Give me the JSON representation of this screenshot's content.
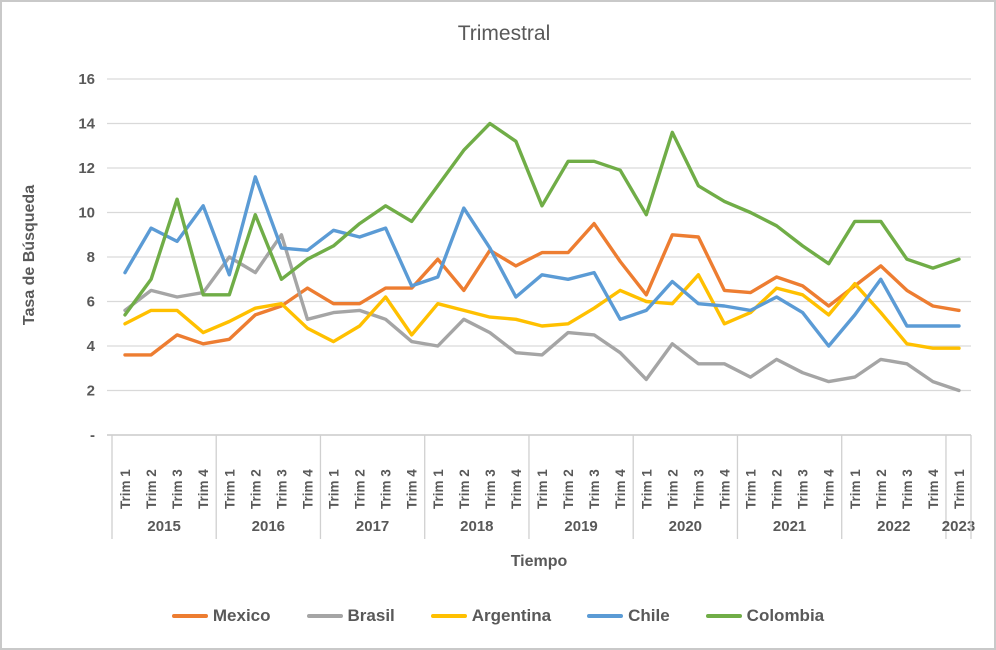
{
  "chart_data": {
    "type": "line",
    "title": "Trimestral",
    "xlabel": "Tiempo",
    "ylabel": "Tasa de Búsqueda",
    "ylim": [
      0,
      16
    ],
    "ytick_step": 2,
    "ytick_zero_label": "-",
    "grid": true,
    "legend_position": "bottom",
    "years": [
      {
        "label": "2015",
        "quarters": [
          "Trim 1",
          "Trim 2",
          "Trim 3",
          "Trim 4"
        ]
      },
      {
        "label": "2016",
        "quarters": [
          "Trim 1",
          "Trim 2",
          "Trim 3",
          "Trim 4"
        ]
      },
      {
        "label": "2017",
        "quarters": [
          "Trim 1",
          "Trim 2",
          "Trim 3",
          "Trim 4"
        ]
      },
      {
        "label": "2018",
        "quarters": [
          "Trim 1",
          "Trim 2",
          "Trim 3",
          "Trim 4"
        ]
      },
      {
        "label": "2019",
        "quarters": [
          "Trim 1",
          "Trim 2",
          "Trim 3",
          "Trim 4"
        ]
      },
      {
        "label": "2020",
        "quarters": [
          "Trim 1",
          "Trim 2",
          "Trim 3",
          "Trim 4"
        ]
      },
      {
        "label": "2021",
        "quarters": [
          "Trim 1",
          "Trim 2",
          "Trim 3",
          "Trim 4"
        ]
      },
      {
        "label": "2022",
        "quarters": [
          "Trim 1",
          "Trim 2",
          "Trim 3",
          "Trim 4"
        ]
      },
      {
        "label": "2023",
        "quarters": [
          "Trim 1"
        ]
      }
    ],
    "series": [
      {
        "name": "Mexico",
        "color": "#ED7D31",
        "values": [
          3.6,
          3.6,
          4.5,
          4.1,
          4.3,
          5.4,
          5.8,
          6.6,
          5.9,
          5.9,
          6.6,
          6.6,
          7.9,
          6.5,
          8.3,
          7.6,
          8.2,
          8.2,
          9.5,
          7.8,
          6.3,
          9.0,
          8.9,
          6.5,
          6.4,
          7.1,
          6.7,
          5.8,
          6.7,
          7.6,
          6.5,
          5.8,
          5.6
        ]
      },
      {
        "name": "Brasil",
        "color": "#A5A5A5",
        "values": [
          5.6,
          6.5,
          6.2,
          6.4,
          8.0,
          7.3,
          9.0,
          5.2,
          5.5,
          5.6,
          5.2,
          4.2,
          4.0,
          5.2,
          4.6,
          3.7,
          3.6,
          4.6,
          4.5,
          3.7,
          2.5,
          4.1,
          3.2,
          3.2,
          2.6,
          3.4,
          2.8,
          2.4,
          2.6,
          3.4,
          3.2,
          2.4,
          2.0
        ]
      },
      {
        "name": "Argentina",
        "color": "#FFC000",
        "values": [
          5.0,
          5.6,
          5.6,
          4.6,
          5.1,
          5.7,
          5.9,
          4.8,
          4.2,
          4.9,
          6.2,
          4.5,
          5.9,
          5.6,
          5.3,
          5.2,
          4.9,
          5.0,
          5.7,
          6.5,
          6.0,
          5.9,
          7.2,
          5.0,
          5.5,
          6.6,
          6.3,
          5.4,
          6.8,
          5.5,
          4.1,
          3.9,
          3.9
        ]
      },
      {
        "name": "Chile",
        "color": "#5B9BD5",
        "values": [
          7.3,
          9.3,
          8.7,
          10.3,
          7.2,
          11.6,
          8.4,
          8.3,
          9.2,
          8.9,
          9.3,
          6.7,
          7.1,
          10.2,
          8.4,
          6.2,
          7.2,
          7.0,
          7.3,
          5.2,
          5.6,
          6.9,
          5.9,
          5.8,
          5.6,
          6.2,
          5.5,
          4.0,
          5.4,
          7.0,
          4.9,
          4.9,
          4.9
        ]
      },
      {
        "name": "Colombia",
        "color": "#70AD47",
        "values": [
          5.4,
          7.0,
          10.6,
          6.3,
          6.3,
          9.9,
          7.0,
          7.9,
          8.5,
          9.5,
          10.3,
          9.6,
          11.2,
          12.8,
          14.0,
          13.2,
          10.3,
          12.3,
          12.3,
          11.9,
          9.9,
          13.6,
          11.2,
          10.5,
          10.0,
          9.4,
          8.5,
          7.7,
          9.6,
          9.6,
          7.9,
          7.5,
          7.9
        ]
      }
    ]
  },
  "colors": {
    "text": "#595959",
    "gridline": "#D9D9D9",
    "axis_line": "#BFBFBF",
    "separator": "#D0D0D0"
  }
}
